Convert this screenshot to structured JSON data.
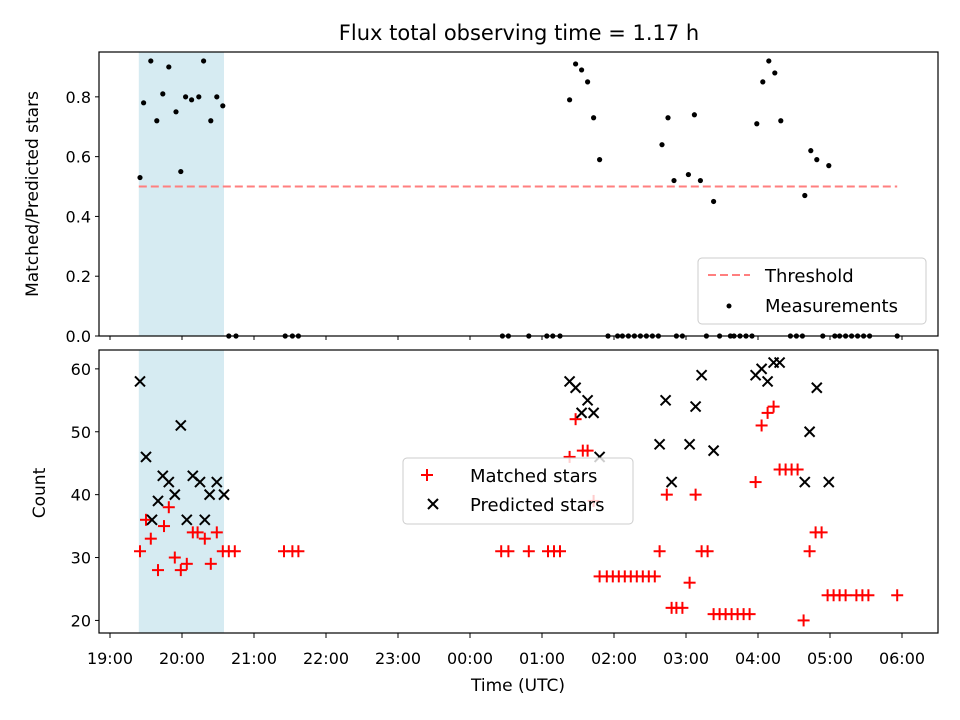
{
  "chart_data": [
    {
      "type": "scatter",
      "title": "Flux total observing time = 1.17 h",
      "ylabel": "Matched/Predicted stars",
      "xlabel": "",
      "xlim": [
        "19:00",
        "06:00"
      ],
      "ylim": [
        0,
        0.95
      ],
      "yticks": [
        0.0,
        0.2,
        0.4,
        0.6,
        0.8
      ],
      "ytick_labels": [
        "0.0",
        "0.2",
        "0.4",
        "0.6",
        "0.8"
      ],
      "legend_position": "lower-right",
      "shaded_span": {
        "start": "19:24",
        "end": "20:35",
        "color": "#add8e6"
      },
      "threshold": {
        "name": "Threshold",
        "value": 0.5,
        "start": "19:24",
        "end": "05:56",
        "color": "#ff7f7f",
        "style": "dashed"
      },
      "series": [
        {
          "name": "Measurements",
          "color": "#000000",
          "marker": "dot",
          "points": [
            [
              "19:25",
              0.53
            ],
            [
              "19:28",
              0.78
            ],
            [
              "19:34",
              0.92
            ],
            [
              "19:39",
              0.72
            ],
            [
              "19:44",
              0.81
            ],
            [
              "19:49",
              0.9
            ],
            [
              "19:55",
              0.75
            ],
            [
              "19:59",
              0.55
            ],
            [
              "20:03",
              0.8
            ],
            [
              "20:08",
              0.79
            ],
            [
              "20:14",
              0.8
            ],
            [
              "20:18",
              0.92
            ],
            [
              "20:24",
              0.72
            ],
            [
              "20:29",
              0.8
            ],
            [
              "20:34",
              0.77
            ],
            [
              "20:39",
              0.0
            ],
            [
              "20:45",
              0.0
            ],
            [
              "21:26",
              0.0
            ],
            [
              "21:32",
              0.0
            ],
            [
              "21:37",
              0.0
            ],
            [
              "00:27",
              0.0
            ],
            [
              "00:32",
              0.0
            ],
            [
              "00:49",
              0.0
            ],
            [
              "01:04",
              0.0
            ],
            [
              "01:09",
              0.0
            ],
            [
              "01:15",
              0.0
            ],
            [
              "01:23",
              0.79
            ],
            [
              "01:28",
              0.91
            ],
            [
              "01:33",
              0.89
            ],
            [
              "01:38",
              0.85
            ],
            [
              "01:43",
              0.73
            ],
            [
              "01:48",
              0.59
            ],
            [
              "01:55",
              0.0
            ],
            [
              "02:03",
              0.0
            ],
            [
              "02:07",
              0.0
            ],
            [
              "02:12",
              0.0
            ],
            [
              "02:17",
              0.0
            ],
            [
              "02:22",
              0.0
            ],
            [
              "02:27",
              0.0
            ],
            [
              "02:32",
              0.0
            ],
            [
              "02:37",
              0.0
            ],
            [
              "02:40",
              0.64
            ],
            [
              "02:45",
              0.73
            ],
            [
              "02:50",
              0.52
            ],
            [
              "02:52",
              0.0
            ],
            [
              "02:57",
              0.0
            ],
            [
              "03:02",
              0.54
            ],
            [
              "03:07",
              0.74
            ],
            [
              "03:12",
              0.52
            ],
            [
              "03:17",
              0.0
            ],
            [
              "03:23",
              0.45
            ],
            [
              "03:28",
              0.0
            ],
            [
              "03:37",
              0.0
            ],
            [
              "03:40",
              0.0
            ],
            [
              "03:45",
              0.0
            ],
            [
              "03:50",
              0.0
            ],
            [
              "03:55",
              0.0
            ],
            [
              "03:59",
              0.71
            ],
            [
              "04:04",
              0.85
            ],
            [
              "04:09",
              0.92
            ],
            [
              "04:14",
              0.88
            ],
            [
              "04:19",
              0.72
            ],
            [
              "04:27",
              0.0
            ],
            [
              "04:32",
              0.0
            ],
            [
              "04:37",
              0.0
            ],
            [
              "04:39",
              0.47
            ],
            [
              "04:44",
              0.62
            ],
            [
              "04:49",
              0.59
            ],
            [
              "04:54",
              0.0
            ],
            [
              "04:59",
              0.57
            ],
            [
              "05:04",
              0.0
            ],
            [
              "05:08",
              0.0
            ],
            [
              "05:13",
              0.0
            ],
            [
              "05:18",
              0.0
            ],
            [
              "05:23",
              0.0
            ],
            [
              "05:28",
              0.0
            ],
            [
              "05:33",
              0.0
            ],
            [
              "05:56",
              0.0
            ]
          ]
        }
      ]
    },
    {
      "type": "scatter",
      "title": "",
      "xlabel": "Time (UTC)",
      "ylabel": "Count",
      "xlim": [
        "19:00",
        "06:00"
      ],
      "ylim": [
        18,
        63
      ],
      "yticks": [
        20,
        30,
        40,
        50,
        60
      ],
      "ytick_labels": [
        "20",
        "30",
        "40",
        "50",
        "60"
      ],
      "xticks": [
        "19:00",
        "20:00",
        "21:00",
        "22:00",
        "23:00",
        "00:00",
        "01:00",
        "02:00",
        "03:00",
        "04:00",
        "05:00",
        "06:00"
      ],
      "legend_position": "center",
      "shaded_span": {
        "start": "19:24",
        "end": "20:35",
        "color": "#add8e6"
      },
      "series": [
        {
          "name": "Matched stars",
          "color": "#ff0000",
          "marker": "plus",
          "points": [
            [
              "19:25",
              31
            ],
            [
              "19:30",
              36
            ],
            [
              "19:34",
              33
            ],
            [
              "19:40",
              28
            ],
            [
              "19:45",
              35
            ],
            [
              "19:49",
              38
            ],
            [
              "19:54",
              30
            ],
            [
              "19:59",
              28
            ],
            [
              "20:04",
              29
            ],
            [
              "20:09",
              34
            ],
            [
              "20:13",
              34
            ],
            [
              "20:19",
              33
            ],
            [
              "20:24",
              29
            ],
            [
              "20:29",
              34
            ],
            [
              "20:34",
              31
            ],
            [
              "20:39",
              31
            ],
            [
              "20:44",
              31
            ],
            [
              "21:25",
              31
            ],
            [
              "21:32",
              31
            ],
            [
              "21:37",
              31
            ],
            [
              "00:26",
              31
            ],
            [
              "00:32",
              31
            ],
            [
              "00:49",
              31
            ],
            [
              "01:05",
              31
            ],
            [
              "01:10",
              31
            ],
            [
              "01:15",
              31
            ],
            [
              "01:23",
              46
            ],
            [
              "01:28",
              52
            ],
            [
              "01:34",
              47
            ],
            [
              "01:38",
              47
            ],
            [
              "01:43",
              39
            ],
            [
              "01:48",
              27
            ],
            [
              "01:54",
              27
            ],
            [
              "01:59",
              27
            ],
            [
              "02:04",
              27
            ],
            [
              "02:09",
              27
            ],
            [
              "02:14",
              27
            ],
            [
              "02:19",
              27
            ],
            [
              "02:24",
              27
            ],
            [
              "02:29",
              27
            ],
            [
              "02:34",
              27
            ],
            [
              "02:38",
              31
            ],
            [
              "02:44",
              40
            ],
            [
              "02:48",
              22
            ],
            [
              "02:52",
              22
            ],
            [
              "02:57",
              22
            ],
            [
              "03:03",
              26
            ],
            [
              "03:08",
              40
            ],
            [
              "03:13",
              31
            ],
            [
              "03:18",
              31
            ],
            [
              "03:23",
              21
            ],
            [
              "03:28",
              21
            ],
            [
              "03:33",
              21
            ],
            [
              "03:38",
              21
            ],
            [
              "03:43",
              21
            ],
            [
              "03:48",
              21
            ],
            [
              "03:53",
              21
            ],
            [
              "03:58",
              42
            ],
            [
              "04:03",
              51
            ],
            [
              "04:08",
              53
            ],
            [
              "04:13",
              54
            ],
            [
              "04:18",
              44
            ],
            [
              "04:23",
              44
            ],
            [
              "04:28",
              44
            ],
            [
              "04:33",
              44
            ],
            [
              "04:38",
              20
            ],
            [
              "04:43",
              31
            ],
            [
              "04:48",
              34
            ],
            [
              "04:53",
              34
            ],
            [
              "04:58",
              24
            ],
            [
              "05:03",
              24
            ],
            [
              "05:08",
              24
            ],
            [
              "05:13",
              24
            ],
            [
              "05:22",
              24
            ],
            [
              "05:27",
              24
            ],
            [
              "05:32",
              24
            ],
            [
              "05:56",
              24
            ]
          ]
        },
        {
          "name": "Predicted stars",
          "color": "#000000",
          "marker": "x",
          "points": [
            [
              "19:25",
              58
            ],
            [
              "19:30",
              46
            ],
            [
              "19:35",
              36
            ],
            [
              "19:40",
              39
            ],
            [
              "19:44",
              43
            ],
            [
              "19:49",
              42
            ],
            [
              "19:54",
              40
            ],
            [
              "19:59",
              51
            ],
            [
              "20:04",
              36
            ],
            [
              "20:09",
              43
            ],
            [
              "20:15",
              42
            ],
            [
              "20:19",
              36
            ],
            [
              "20:23",
              40
            ],
            [
              "20:29",
              42
            ],
            [
              "20:35",
              40
            ],
            [
              "01:23",
              58
            ],
            [
              "01:28",
              57
            ],
            [
              "01:33",
              53
            ],
            [
              "01:38",
              55
            ],
            [
              "01:43",
              53
            ],
            [
              "01:48",
              46
            ],
            [
              "02:38",
              48
            ],
            [
              "02:43",
              55
            ],
            [
              "02:48",
              42
            ],
            [
              "03:03",
              48
            ],
            [
              "03:08",
              54
            ],
            [
              "03:13",
              59
            ],
            [
              "03:23",
              47
            ],
            [
              "03:58",
              59
            ],
            [
              "04:03",
              60
            ],
            [
              "04:08",
              58
            ],
            [
              "04:13",
              61
            ],
            [
              "04:18",
              61
            ],
            [
              "04:39",
              42
            ],
            [
              "04:43",
              50
            ],
            [
              "04:49",
              57
            ],
            [
              "04:59",
              42
            ]
          ]
        }
      ]
    }
  ]
}
